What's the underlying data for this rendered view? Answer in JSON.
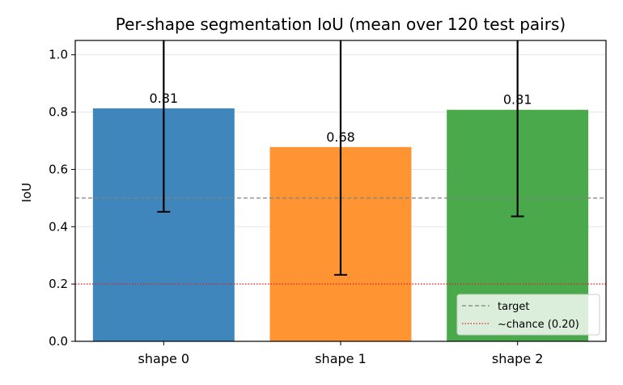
{
  "chart_data": {
    "type": "bar",
    "title": "Per-shape segmentation IoU (mean over 120 test pairs)",
    "xlabel": "",
    "ylabel": "IoU",
    "ylim": [
      0,
      1.05
    ],
    "yticks": [
      0.0,
      0.2,
      0.4,
      0.6,
      0.8,
      1.0
    ],
    "ytick_labels": [
      "0.0",
      "0.2",
      "0.4",
      "0.6",
      "0.8",
      "1.0"
    ],
    "categories": [
      "shape 0",
      "shape 1",
      "shape 2"
    ],
    "values": [
      0.813,
      0.678,
      0.808
    ],
    "value_labels": [
      "0.81",
      "0.68",
      "0.81"
    ],
    "error_bars": [
      {
        "lower": 0.452,
        "upper": 1.18
      },
      {
        "lower": 0.232,
        "upper": 1.12
      },
      {
        "lower": 0.436,
        "upper": 1.18
      }
    ],
    "bar_colors": [
      "#3f86bd",
      "#ff9433",
      "#4aa94a"
    ],
    "reference_lines": [
      {
        "name": "target",
        "value": 0.5,
        "style": "dashed",
        "color": "#808080"
      },
      {
        "name": "~chance (0.20)",
        "value": 0.2,
        "style": "dotted",
        "color": "#e02020"
      }
    ],
    "legend_position": "lower-right",
    "grid": "horizontal"
  }
}
